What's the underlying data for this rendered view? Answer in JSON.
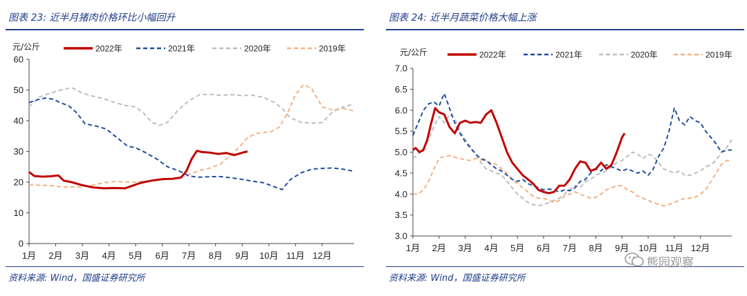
{
  "panels": [
    {
      "title": "图表 23:  近半月猪肉价格环比小幅回升",
      "source": "资料来源:  Wind，国盛证券研究所"
    },
    {
      "title": "图表 24:  近半月蔬菜价格大幅上涨",
      "source": "资料来源:  Wind，国盛证券研究所"
    }
  ],
  "watermark": "熊园观察",
  "colors": {
    "s2022": "#c00000",
    "s2021": "#1f4e9a",
    "s2020": "#bdbdbd",
    "s2019": "#f4b183",
    "axis": "#1f3c88"
  },
  "chart_data": [
    {
      "type": "line",
      "title": "近半月猪肉价格环比小幅回升",
      "ylabel": "元/公斤",
      "ylim": [
        0,
        60
      ],
      "yticks": [
        "0",
        "10",
        "20",
        "30",
        "40",
        "50",
        "60"
      ],
      "xticks": [
        "1月",
        "2月",
        "3月",
        "4月",
        "5月",
        "6月",
        "7月",
        "8月",
        "9月",
        "10月",
        "11月",
        "12月"
      ],
      "xlim": [
        1,
        13.2
      ],
      "series": [
        {
          "name": "2022年",
          "style": "solid",
          "x": [
            1.0,
            1.2,
            1.5,
            1.8,
            2.1,
            2.3,
            2.6,
            3.0,
            3.4,
            3.8,
            4.2,
            4.6,
            4.9,
            5.2,
            5.6,
            6.0,
            6.4,
            6.7,
            6.9,
            7.1,
            7.3,
            7.5,
            7.8,
            8.1,
            8.4,
            8.7,
            9.0,
            9.2
          ],
          "values": [
            23.3,
            22.0,
            21.8,
            21.9,
            22.2,
            20.5,
            20.0,
            19.0,
            18.3,
            18.0,
            18.1,
            18.0,
            18.9,
            19.8,
            20.5,
            21.0,
            21.1,
            21.5,
            23.5,
            27.5,
            30.2,
            29.8,
            29.6,
            29.2,
            29.5,
            28.8,
            29.6,
            30.0
          ]
        },
        {
          "name": "2021年",
          "style": "dashed",
          "x": [
            1.0,
            1.3,
            1.6,
            1.9,
            2.2,
            2.5,
            2.8,
            3.1,
            3.5,
            3.9,
            4.3,
            4.7,
            5.0,
            5.4,
            5.8,
            6.2,
            6.6,
            7.0,
            7.4,
            7.8,
            8.2,
            8.6,
            9.0,
            9.4,
            9.8,
            10.2,
            10.5,
            10.8,
            11.2,
            11.6,
            12.0,
            12.4,
            12.8,
            13.2
          ],
          "values": [
            45.9,
            46.8,
            47.4,
            47.0,
            45.8,
            44.8,
            42.5,
            39.0,
            38.3,
            37.3,
            34.5,
            31.7,
            31.2,
            29.5,
            27.5,
            25.0,
            23.8,
            22.0,
            21.6,
            21.8,
            21.8,
            21.4,
            20.9,
            20.3,
            19.8,
            18.5,
            17.6,
            20.8,
            23.0,
            24.2,
            24.5,
            24.6,
            24.2,
            23.5
          ]
        },
        {
          "name": "2020年",
          "style": "dashed",
          "x": [
            1.0,
            1.4,
            1.8,
            2.2,
            2.6,
            3.0,
            3.4,
            3.8,
            4.2,
            4.6,
            5.0,
            5.3,
            5.6,
            5.9,
            6.2,
            6.6,
            7.0,
            7.4,
            7.8,
            8.2,
            8.6,
            9.0,
            9.4,
            9.8,
            10.2,
            10.5,
            10.8,
            11.2,
            11.6,
            12.0,
            12.4,
            12.8,
            13.2
          ],
          "values": [
            44.5,
            47.8,
            49.0,
            50.0,
            50.8,
            49.0,
            48.0,
            47.2,
            46.0,
            45.0,
            44.5,
            42.5,
            39.5,
            38.5,
            39.5,
            43.5,
            46.5,
            48.5,
            48.6,
            48.3,
            48.5,
            48.2,
            48.3,
            47.6,
            46.0,
            44.0,
            41.0,
            39.5,
            39.2,
            39.4,
            43.0,
            44.5,
            45.5
          ]
        },
        {
          "name": "2019年",
          "style": "dashed",
          "x": [
            1.0,
            1.4,
            1.8,
            2.2,
            2.6,
            3.0,
            3.4,
            3.8,
            4.2,
            4.6,
            5.0,
            5.4,
            5.8,
            6.2,
            6.6,
            7.0,
            7.4,
            7.8,
            8.2,
            8.6,
            8.9,
            9.2,
            9.5,
            9.8,
            10.1,
            10.4,
            10.7,
            11.0,
            11.3,
            11.6,
            12.0,
            12.4,
            12.8,
            13.2
          ],
          "values": [
            19.2,
            19.0,
            18.9,
            18.5,
            18.4,
            18.5,
            19.0,
            19.8,
            20.2,
            20.1,
            20.0,
            20.3,
            20.6,
            21.0,
            21.5,
            22.5,
            23.8,
            24.6,
            26.0,
            29.0,
            31.5,
            34.5,
            35.8,
            36.2,
            36.5,
            38.0,
            42.5,
            48.5,
            51.8,
            50.5,
            44.5,
            43.5,
            44.0,
            43.2
          ]
        }
      ]
    },
    {
      "type": "line",
      "title": "近半月蔬菜价格大幅上涨",
      "ylabel": "元/公斤",
      "ylim": [
        3.0,
        7.0
      ],
      "yticks": [
        "3.0",
        "3.5",
        "4.0",
        "4.5",
        "5.0",
        "5.5",
        "6.0",
        "6.5",
        "7.0"
      ],
      "xticks": [
        "1月",
        "2月",
        "3月",
        "4月",
        "5月",
        "6月",
        "7月",
        "8月",
        "9月",
        "10月",
        "11月",
        "12月"
      ],
      "xlim": [
        1,
        13.2
      ],
      "series": [
        {
          "name": "2022年",
          "style": "solid",
          "x": [
            1.0,
            1.1,
            1.25,
            1.4,
            1.55,
            1.7,
            1.85,
            2.0,
            2.2,
            2.4,
            2.6,
            2.8,
            3.0,
            3.2,
            3.4,
            3.6,
            3.8,
            4.0,
            4.2,
            4.4,
            4.6,
            4.8,
            5.0,
            5.2,
            5.4,
            5.6,
            5.8,
            6.0,
            6.2,
            6.4,
            6.6,
            6.8,
            7.0,
            7.2,
            7.4,
            7.6,
            7.8,
            8.0,
            8.2,
            8.4,
            8.6,
            8.8,
            9.0,
            9.1
          ],
          "values": [
            5.05,
            5.1,
            5.0,
            5.05,
            5.3,
            5.7,
            6.05,
            5.95,
            5.9,
            5.6,
            5.45,
            5.7,
            5.75,
            5.7,
            5.72,
            5.7,
            5.9,
            6.0,
            5.7,
            5.35,
            5.0,
            4.75,
            4.6,
            4.45,
            4.35,
            4.25,
            4.1,
            4.05,
            4.02,
            4.05,
            4.2,
            4.2,
            4.35,
            4.6,
            4.78,
            4.75,
            4.55,
            4.6,
            4.75,
            4.6,
            4.7,
            5.0,
            5.35,
            5.45
          ]
        },
        {
          "name": "2021年",
          "style": "dashed",
          "x": [
            1.0,
            1.2,
            1.4,
            1.6,
            1.8,
            2.0,
            2.2,
            2.4,
            2.6,
            2.8,
            3.0,
            3.2,
            3.4,
            3.6,
            3.8,
            4.0,
            4.2,
            4.4,
            4.6,
            4.8,
            5.0,
            5.2,
            5.4,
            5.6,
            5.8,
            6.0,
            6.2,
            6.4,
            6.6,
            6.8,
            7.0,
            7.2,
            7.4,
            7.6,
            7.8,
            8.0,
            8.2,
            8.4,
            8.6,
            8.8,
            9.0,
            9.2,
            9.4,
            9.6,
            9.8,
            10.0,
            10.2,
            10.4,
            10.6,
            10.8,
            11.0,
            11.2,
            11.4,
            11.6,
            11.8,
            12.0,
            12.2,
            12.4,
            12.6,
            12.8,
            13.0,
            13.2
          ],
          "values": [
            5.4,
            5.7,
            6.0,
            6.15,
            6.2,
            6.1,
            6.4,
            6.05,
            5.7,
            5.45,
            5.25,
            5.1,
            4.95,
            4.85,
            4.8,
            4.7,
            4.6,
            4.55,
            4.45,
            4.35,
            4.3,
            4.35,
            4.25,
            4.2,
            4.15,
            4.1,
            4.12,
            4.1,
            4.05,
            4.1,
            4.08,
            4.15,
            4.3,
            4.35,
            4.5,
            4.6,
            4.55,
            4.7,
            4.65,
            4.6,
            4.55,
            4.6,
            4.55,
            4.5,
            4.55,
            4.45,
            4.6,
            4.9,
            5.1,
            5.5,
            6.05,
            5.75,
            5.65,
            5.85,
            5.75,
            5.7,
            5.5,
            5.35,
            5.2,
            5.0,
            5.05,
            5.05
          ]
        },
        {
          "name": "2020年",
          "style": "dashed",
          "x": [
            1.0,
            1.2,
            1.4,
            1.6,
            1.8,
            2.0,
            2.2,
            2.4,
            2.6,
            2.8,
            3.0,
            3.2,
            3.4,
            3.6,
            3.8,
            4.0,
            4.2,
            4.4,
            4.6,
            4.8,
            5.0,
            5.2,
            5.4,
            5.6,
            5.8,
            6.0,
            6.2,
            6.4,
            6.6,
            6.8,
            7.0,
            7.2,
            7.4,
            7.6,
            7.8,
            8.0,
            8.2,
            8.4,
            8.6,
            8.8,
            9.0,
            9.2,
            9.4,
            9.6,
            9.8,
            10.0,
            10.2,
            10.4,
            10.6,
            10.8,
            11.0,
            11.2,
            11.4,
            11.6,
            11.8,
            12.0,
            12.2,
            12.4,
            12.6,
            12.8,
            13.0,
            13.2
          ],
          "values": [
            4.85,
            4.95,
            5.1,
            5.3,
            5.6,
            5.85,
            5.7,
            5.9,
            5.8,
            5.5,
            5.3,
            5.15,
            4.95,
            4.75,
            4.6,
            4.55,
            4.5,
            4.45,
            4.3,
            4.15,
            4.0,
            3.9,
            3.8,
            3.75,
            3.72,
            3.75,
            3.8,
            3.85,
            3.9,
            4.0,
            4.1,
            4.2,
            4.15,
            4.3,
            4.35,
            4.45,
            4.5,
            4.55,
            4.65,
            4.75,
            4.8,
            4.9,
            5.0,
            4.95,
            4.85,
            4.95,
            4.9,
            4.75,
            4.6,
            4.55,
            4.5,
            4.55,
            4.45,
            4.45,
            4.5,
            4.55,
            4.65,
            4.7,
            4.8,
            5.0,
            5.1,
            5.3
          ]
        },
        {
          "name": "2019年",
          "style": "dashed",
          "x": [
            1.0,
            1.2,
            1.4,
            1.6,
            1.8,
            2.0,
            2.2,
            2.4,
            2.6,
            2.8,
            3.0,
            3.2,
            3.4,
            3.6,
            3.8,
            4.0,
            4.2,
            4.4,
            4.6,
            4.8,
            5.0,
            5.2,
            5.4,
            5.6,
            5.8,
            6.0,
            6.2,
            6.4,
            6.6,
            6.8,
            7.0,
            7.2,
            7.4,
            7.6,
            7.8,
            8.0,
            8.2,
            8.4,
            8.6,
            8.8,
            9.0,
            9.2,
            9.4,
            9.6,
            9.8,
            10.0,
            10.2,
            10.4,
            10.6,
            10.8,
            11.0,
            11.2,
            11.4,
            11.6,
            11.8,
            12.0,
            12.2,
            12.4,
            12.6,
            12.8,
            13.0,
            13.2
          ],
          "values": [
            4.0,
            4.0,
            4.1,
            4.3,
            4.6,
            4.85,
            4.9,
            4.92,
            4.88,
            4.85,
            4.82,
            4.8,
            4.85,
            4.82,
            4.78,
            4.75,
            4.7,
            4.6,
            4.5,
            4.35,
            4.25,
            4.15,
            4.05,
            3.95,
            3.9,
            3.9,
            3.85,
            3.8,
            3.85,
            3.95,
            4.0,
            4.05,
            4.0,
            3.95,
            3.9,
            3.92,
            4.0,
            4.1,
            4.15,
            4.2,
            4.2,
            4.1,
            4.05,
            3.95,
            3.9,
            3.85,
            3.8,
            3.75,
            3.72,
            3.75,
            3.8,
            3.85,
            3.9,
            3.9,
            3.92,
            4.0,
            4.1,
            4.3,
            4.5,
            4.7,
            4.8,
            4.8
          ]
        }
      ]
    }
  ]
}
